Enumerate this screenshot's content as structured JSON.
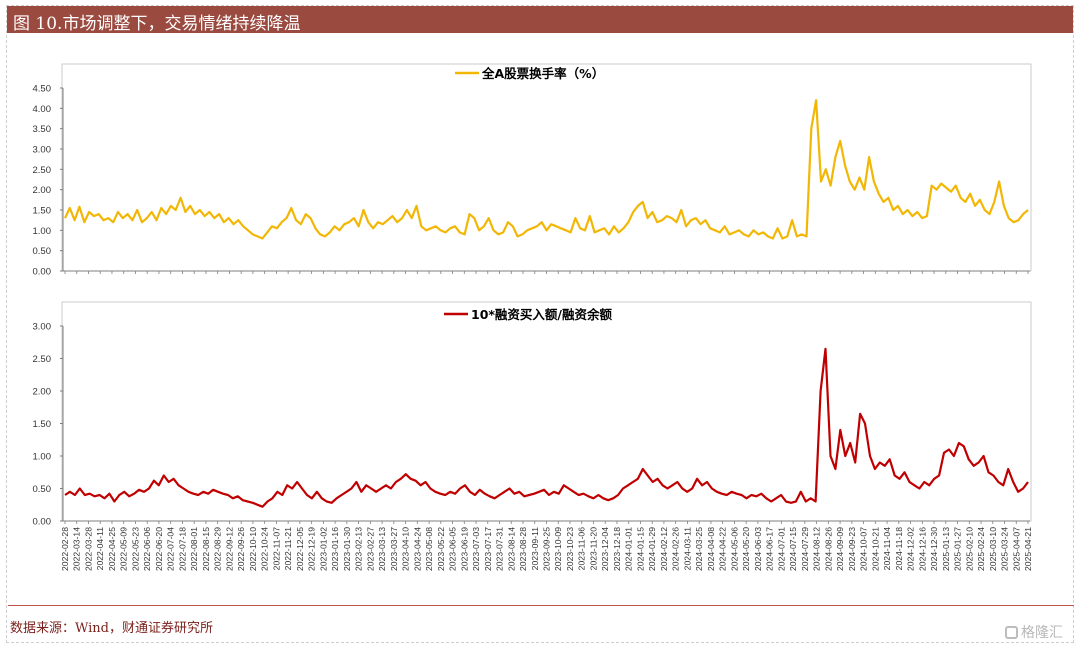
{
  "header": {
    "title": "图 10.市场调整下，交易情绪持续降温"
  },
  "footer": {
    "source": "数据来源：Wind，财通证券研究所",
    "watermark": "格隆汇"
  },
  "colors": {
    "header_bg": "#9b4a40",
    "series1": "#f2b705",
    "series2": "#c00000"
  },
  "chart_data": [
    {
      "type": "line",
      "title": "",
      "grid": false,
      "ylim": [
        0,
        4.5
      ],
      "yticks": [
        "0.00",
        "0.50",
        "1.00",
        "1.50",
        "2.00",
        "2.50",
        "3.00",
        "3.50",
        "4.00",
        "4.50"
      ],
      "series": [
        {
          "name": "全A股票换手率（%）",
          "color": "#f2b705",
          "values": [
            1.3,
            1.55,
            1.25,
            1.58,
            1.2,
            1.45,
            1.35,
            1.4,
            1.25,
            1.3,
            1.2,
            1.45,
            1.3,
            1.4,
            1.25,
            1.5,
            1.2,
            1.3,
            1.45,
            1.25,
            1.55,
            1.4,
            1.6,
            1.5,
            1.8,
            1.45,
            1.6,
            1.4,
            1.5,
            1.35,
            1.45,
            1.3,
            1.4,
            1.2,
            1.3,
            1.15,
            1.25,
            1.1,
            1.0,
            0.9,
            0.85,
            0.8,
            0.95,
            1.1,
            1.05,
            1.2,
            1.3,
            1.55,
            1.25,
            1.15,
            1.4,
            1.3,
            1.05,
            0.9,
            0.85,
            0.95,
            1.1,
            1.0,
            1.15,
            1.2,
            1.3,
            1.1,
            1.5,
            1.2,
            1.05,
            1.2,
            1.15,
            1.25,
            1.35,
            1.2,
            1.3,
            1.5,
            1.3,
            1.6,
            1.1,
            1.0,
            1.05,
            1.1,
            1.0,
            0.95,
            1.05,
            1.1,
            0.95,
            0.9,
            1.4,
            1.3,
            1.0,
            1.1,
            1.3,
            1.0,
            0.9,
            0.95,
            1.2,
            1.1,
            0.85,
            0.9,
            1.0,
            1.05,
            1.1,
            1.2,
            1.0,
            1.15,
            1.1,
            1.05,
            1.0,
            0.95,
            1.3,
            1.05,
            1.0,
            1.35,
            0.95,
            1.0,
            1.05,
            0.9,
            1.1,
            0.95,
            1.05,
            1.2,
            1.45,
            1.6,
            1.7,
            1.3,
            1.45,
            1.2,
            1.25,
            1.35,
            1.3,
            1.2,
            1.5,
            1.1,
            1.25,
            1.3,
            1.15,
            1.25,
            1.05,
            1.0,
            0.95,
            1.1,
            0.9,
            0.95,
            1.0,
            0.9,
            0.85,
            1.0,
            0.9,
            0.95,
            0.85,
            0.8,
            1.05,
            0.8,
            0.85,
            1.25,
            0.85,
            0.9,
            0.85,
            3.5,
            4.2,
            2.2,
            2.5,
            2.1,
            2.8,
            3.2,
            2.6,
            2.2,
            2.0,
            2.3,
            2.0,
            2.8,
            2.2,
            1.9,
            1.7,
            1.8,
            1.5,
            1.6,
            1.4,
            1.5,
            1.35,
            1.45,
            1.3,
            1.35,
            2.1,
            2.0,
            2.15,
            2.05,
            1.95,
            2.1,
            1.8,
            1.7,
            1.9,
            1.6,
            1.75,
            1.5,
            1.4,
            1.7,
            2.2,
            1.6,
            1.3,
            1.2,
            1.25,
            1.4,
            1.5
          ]
        }
      ]
    },
    {
      "type": "line",
      "title": "",
      "grid": false,
      "ylim": [
        0,
        3.0
      ],
      "yticks": [
        "0.00",
        "0.50",
        "1.00",
        "1.50",
        "2.00",
        "2.50",
        "3.00"
      ],
      "x_tick_labels": [
        "2022-02-28",
        "2022-03-14",
        "2022-03-28",
        "2022-04-11",
        "2022-04-25",
        "2022-05-09",
        "2022-05-23",
        "2022-06-06",
        "2022-06-20",
        "2022-07-04",
        "2022-07-18",
        "2022-08-01",
        "2022-08-15",
        "2022-08-29",
        "2022-09-12",
        "2022-09-26",
        "2022-10-10",
        "2022-10-24",
        "2022-11-07",
        "2022-11-21",
        "2022-12-05",
        "2022-12-19",
        "2023-01-02",
        "2023-01-16",
        "2023-01-30",
        "2023-02-13",
        "2023-02-27",
        "2023-03-13",
        "2023-03-27",
        "2023-04-10",
        "2023-04-24",
        "2023-05-08",
        "2023-05-22",
        "2023-06-05",
        "2023-06-19",
        "2023-07-03",
        "2023-07-17",
        "2023-07-31",
        "2023-08-14",
        "2023-08-28",
        "2023-09-11",
        "2023-09-25",
        "2023-10-09",
        "2023-10-23",
        "2023-11-06",
        "2023-11-20",
        "2023-12-04",
        "2023-12-18",
        "2024-01-01",
        "2024-01-15",
        "2024-01-29",
        "2024-02-12",
        "2024-02-26",
        "2024-03-11",
        "2024-03-25",
        "2024-04-08",
        "2024-04-22",
        "2024-05-06",
        "2024-05-20",
        "2024-06-03",
        "2024-06-17",
        "2024-07-01",
        "2024-07-15",
        "2024-07-29",
        "2024-08-12",
        "2024-08-26",
        "2024-09-09",
        "2024-09-23",
        "2024-10-07",
        "2024-10-21",
        "2024-11-04",
        "2024-11-18",
        "2024-12-02",
        "2024-12-16",
        "2024-12-30",
        "2025-01-13",
        "2025-01-27",
        "2025-02-10",
        "2025-02-24",
        "2025-03-10",
        "2025-03-24",
        "2025-04-07",
        "2025-04-21"
      ],
      "series": [
        {
          "name": "10*融资买入额/融资余额",
          "color": "#c00000",
          "values": [
            0.4,
            0.45,
            0.4,
            0.5,
            0.4,
            0.42,
            0.38,
            0.4,
            0.35,
            0.42,
            0.3,
            0.4,
            0.45,
            0.38,
            0.42,
            0.48,
            0.45,
            0.5,
            0.62,
            0.55,
            0.7,
            0.6,
            0.65,
            0.55,
            0.5,
            0.45,
            0.42,
            0.4,
            0.45,
            0.42,
            0.48,
            0.45,
            0.42,
            0.4,
            0.35,
            0.38,
            0.32,
            0.3,
            0.28,
            0.25,
            0.22,
            0.3,
            0.35,
            0.45,
            0.4,
            0.55,
            0.5,
            0.6,
            0.5,
            0.4,
            0.35,
            0.45,
            0.35,
            0.3,
            0.28,
            0.35,
            0.4,
            0.45,
            0.5,
            0.6,
            0.45,
            0.55,
            0.5,
            0.45,
            0.5,
            0.55,
            0.5,
            0.6,
            0.65,
            0.72,
            0.65,
            0.62,
            0.55,
            0.6,
            0.5,
            0.45,
            0.42,
            0.4,
            0.45,
            0.42,
            0.5,
            0.55,
            0.45,
            0.4,
            0.48,
            0.42,
            0.38,
            0.35,
            0.4,
            0.45,
            0.5,
            0.42,
            0.45,
            0.38,
            0.4,
            0.42,
            0.45,
            0.48,
            0.4,
            0.45,
            0.42,
            0.55,
            0.5,
            0.45,
            0.4,
            0.42,
            0.38,
            0.35,
            0.4,
            0.35,
            0.32,
            0.35,
            0.4,
            0.5,
            0.55,
            0.6,
            0.65,
            0.8,
            0.7,
            0.6,
            0.65,
            0.55,
            0.5,
            0.55,
            0.6,
            0.5,
            0.45,
            0.5,
            0.65,
            0.55,
            0.6,
            0.5,
            0.45,
            0.42,
            0.4,
            0.45,
            0.42,
            0.4,
            0.35,
            0.4,
            0.38,
            0.42,
            0.35,
            0.3,
            0.35,
            0.4,
            0.3,
            0.28,
            0.3,
            0.45,
            0.3,
            0.35,
            0.3,
            2.0,
            2.65,
            1.0,
            0.8,
            1.4,
            1.0,
            1.2,
            0.9,
            1.65,
            1.5,
            1.0,
            0.8,
            0.9,
            0.85,
            0.95,
            0.7,
            0.65,
            0.75,
            0.6,
            0.55,
            0.5,
            0.6,
            0.55,
            0.65,
            0.7,
            1.05,
            1.1,
            1.0,
            1.2,
            1.15,
            0.95,
            0.85,
            0.9,
            1.0,
            0.75,
            0.7,
            0.6,
            0.55,
            0.8,
            0.6,
            0.45,
            0.5,
            0.6
          ]
        }
      ]
    }
  ]
}
